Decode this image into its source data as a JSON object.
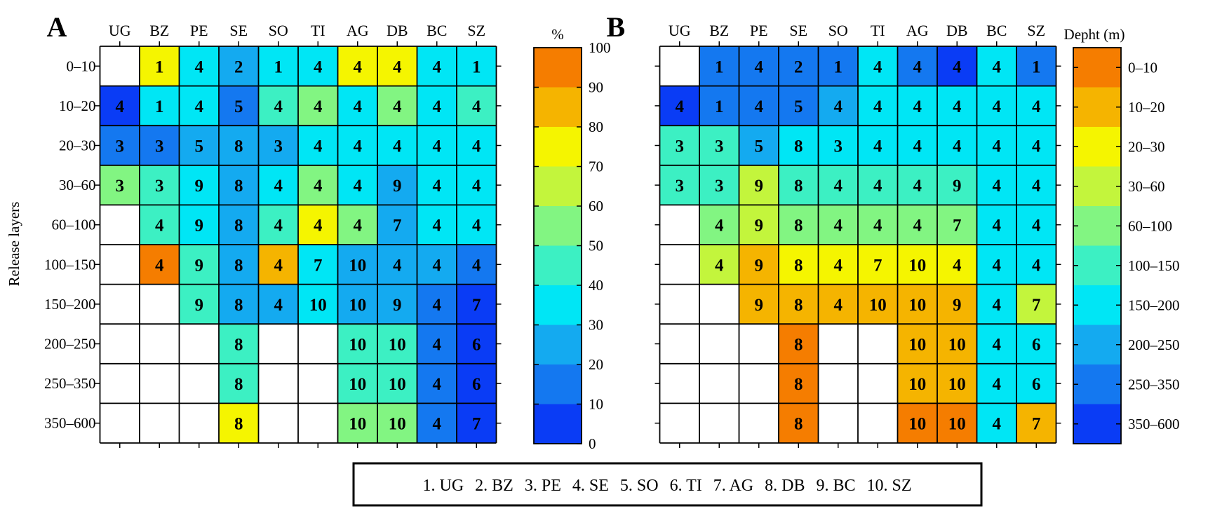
{
  "chart_data": {
    "type": "heatmap",
    "ylabel": "Release layers",
    "columns": [
      "UG",
      "BZ",
      "PE",
      "SE",
      "SO",
      "TI",
      "AG",
      "DB",
      "BC",
      "SZ"
    ],
    "rows": [
      "0–10",
      "10–20",
      "20–30",
      "30–60",
      "60–100",
      "100–150",
      "150–200",
      "200–250",
      "250–350",
      "350–600"
    ],
    "cell_labels": [
      [
        null,
        1,
        4,
        2,
        1,
        4,
        4,
        4,
        4,
        1
      ],
      [
        4,
        1,
        4,
        5,
        4,
        4,
        4,
        4,
        4,
        4
      ],
      [
        3,
        3,
        5,
        8,
        3,
        4,
        4,
        4,
        4,
        4
      ],
      [
        3,
        3,
        9,
        8,
        4,
        4,
        4,
        9,
        4,
        4
      ],
      [
        null,
        4,
        9,
        8,
        4,
        4,
        4,
        7,
        4,
        4
      ],
      [
        null,
        4,
        9,
        8,
        4,
        7,
        10,
        4,
        4,
        4
      ],
      [
        null,
        null,
        9,
        8,
        4,
        10,
        10,
        9,
        4,
        7
      ],
      [
        null,
        null,
        null,
        8,
        null,
        null,
        10,
        10,
        4,
        6
      ],
      [
        null,
        null,
        null,
        8,
        null,
        null,
        10,
        10,
        4,
        6
      ],
      [
        null,
        null,
        null,
        8,
        null,
        null,
        10,
        10,
        4,
        7
      ]
    ],
    "panels": [
      {
        "letter": "A",
        "colorbar_title": "%",
        "colorbar_ticks": [
          "100",
          "90",
          "80",
          "70",
          "60",
          "50",
          "40",
          "30",
          "20",
          "10",
          "0"
        ],
        "color_levels": [
          [
            null,
            7,
            3,
            2,
            3,
            3,
            7,
            7,
            3,
            3
          ],
          [
            0,
            3,
            3,
            1,
            4,
            5,
            3,
            5,
            3,
            4
          ],
          [
            1,
            1,
            2,
            2,
            2,
            3,
            3,
            3,
            3,
            3
          ],
          [
            5,
            4,
            3,
            2,
            3,
            5,
            3,
            2,
            3,
            3
          ],
          [
            null,
            4,
            3,
            2,
            4,
            7,
            5,
            2,
            3,
            3
          ],
          [
            null,
            9,
            4,
            2,
            8,
            3,
            2,
            2,
            2,
            1
          ],
          [
            null,
            null,
            4,
            2,
            2,
            3,
            2,
            2,
            1,
            0
          ],
          [
            null,
            null,
            null,
            4,
            null,
            null,
            4,
            4,
            1,
            0
          ],
          [
            null,
            null,
            null,
            4,
            null,
            null,
            4,
            4,
            1,
            0
          ],
          [
            null,
            null,
            null,
            7,
            null,
            null,
            5,
            5,
            1,
            0
          ]
        ]
      },
      {
        "letter": "B",
        "colorbar_title": "Depht (m)",
        "colorbar_ticks": [
          "0–10",
          "10–20",
          "20–30",
          "30–60",
          "60–100",
          "100–150",
          "150–200",
          "200–250",
          "250–350",
          "350–600"
        ],
        "color_levels": [
          [
            null,
            1,
            1,
            1,
            1,
            3,
            1,
            0,
            3,
            1
          ],
          [
            0,
            1,
            1,
            1,
            2,
            3,
            3,
            3,
            3,
            3
          ],
          [
            4,
            4,
            2,
            3,
            3,
            3,
            3,
            3,
            3,
            3
          ],
          [
            4,
            4,
            6,
            4,
            4,
            4,
            4,
            4,
            3,
            3
          ],
          [
            null,
            5,
            6,
            5,
            5,
            5,
            5,
            5,
            3,
            3
          ],
          [
            null,
            6,
            8,
            7,
            7,
            7,
            7,
            7,
            3,
            3
          ],
          [
            null,
            null,
            8,
            8,
            8,
            8,
            8,
            8,
            3,
            6
          ],
          [
            null,
            null,
            null,
            9,
            null,
            null,
            8,
            8,
            3,
            3
          ],
          [
            null,
            null,
            null,
            9,
            null,
            null,
            8,
            8,
            3,
            3
          ],
          [
            null,
            null,
            null,
            9,
            null,
            null,
            9,
            9,
            3,
            8
          ]
        ]
      }
    ],
    "palette": [
      "#0a3cf5",
      "#1478f0",
      "#14aaf0",
      "#00e6f5",
      "#3cf0c3",
      "#82f582",
      "#c3f53c",
      "#f5f500",
      "#f5b400",
      "#f57d00"
    ],
    "legend": [
      "1. UG",
      "2. BZ",
      "3. PE",
      "4. SE",
      "5. SO",
      "6. TI",
      "7. AG",
      "8. DB",
      "9. BC",
      "10. SZ"
    ]
  }
}
